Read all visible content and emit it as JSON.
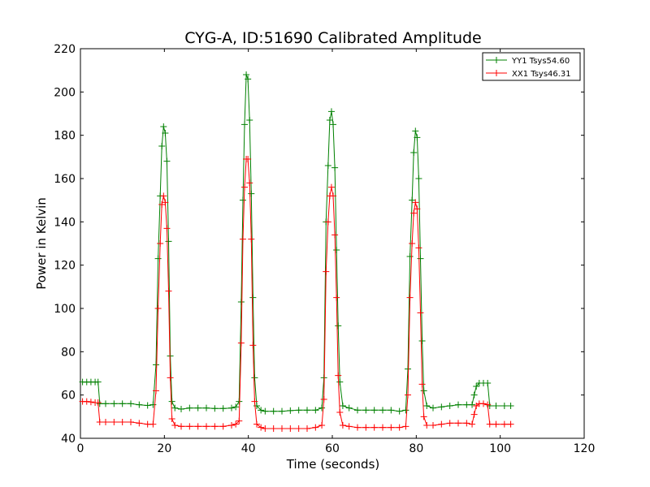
{
  "chart_data": {
    "type": "line",
    "title": "CYG-A, ID:51690 Calibrated Amplitude",
    "xlabel": "Time (seconds)",
    "ylabel": "Power in Kelvin",
    "xlim": [
      0,
      120
    ],
    "ylim": [
      40,
      220
    ],
    "xticks": [
      0,
      20,
      40,
      60,
      80,
      100,
      120
    ],
    "yticks": [
      40,
      60,
      80,
      100,
      120,
      140,
      160,
      180,
      200,
      220
    ],
    "xtick_labels": [
      "0",
      "20",
      "40",
      "60",
      "80",
      "100",
      "120"
    ],
    "ytick_labels": [
      "40",
      "60",
      "80",
      "100",
      "120",
      "140",
      "160",
      "180",
      "200",
      "220"
    ],
    "grid": false,
    "legend_position": "top-right",
    "marker": "+",
    "series": [
      {
        "name": "YY1 Tsys54.60",
        "color": "#008000",
        "points": [
          [
            0.5,
            66
          ],
          [
            1.5,
            66
          ],
          [
            2.5,
            66
          ],
          [
            3.5,
            66
          ],
          [
            4.2,
            66
          ],
          [
            4.6,
            56
          ],
          [
            6,
            56
          ],
          [
            8,
            56
          ],
          [
            10,
            56
          ],
          [
            12,
            56
          ],
          [
            14,
            55.5
          ],
          [
            16,
            55.2
          ],
          [
            17.3,
            55.5
          ],
          [
            18,
            74
          ],
          [
            18.5,
            123
          ],
          [
            19,
            152
          ],
          [
            19.4,
            175
          ],
          [
            19.8,
            184
          ],
          [
            20.2,
            181
          ],
          [
            20.6,
            168
          ],
          [
            21,
            131
          ],
          [
            21.4,
            78
          ],
          [
            21.8,
            57
          ],
          [
            22.5,
            54
          ],
          [
            24,
            53.5
          ],
          [
            26,
            54
          ],
          [
            28,
            54
          ],
          [
            30,
            54
          ],
          [
            32,
            53.8
          ],
          [
            34,
            53.8
          ],
          [
            36,
            54
          ],
          [
            37,
            54.5
          ],
          [
            37.8,
            57
          ],
          [
            38.3,
            103
          ],
          [
            38.7,
            150
          ],
          [
            39.1,
            185
          ],
          [
            39.5,
            208
          ],
          [
            39.9,
            206
          ],
          [
            40.3,
            187
          ],
          [
            40.7,
            153
          ],
          [
            41.1,
            105
          ],
          [
            41.5,
            68
          ],
          [
            42,
            55
          ],
          [
            43,
            53
          ],
          [
            44,
            52.5
          ],
          [
            46,
            52.5
          ],
          [
            48,
            52.5
          ],
          [
            50,
            52.8
          ],
          [
            52,
            53
          ],
          [
            54,
            53
          ],
          [
            56,
            53
          ],
          [
            57.5,
            54
          ],
          [
            58,
            68
          ],
          [
            58.5,
            140
          ],
          [
            59,
            166
          ],
          [
            59.4,
            187
          ],
          [
            59.8,
            191
          ],
          [
            60.2,
            185
          ],
          [
            60.6,
            165
          ],
          [
            61,
            127
          ],
          [
            61.4,
            92
          ],
          [
            61.8,
            66
          ],
          [
            62.5,
            55
          ],
          [
            64,
            54
          ],
          [
            66,
            53
          ],
          [
            68,
            53
          ],
          [
            70,
            53
          ],
          [
            72,
            53
          ],
          [
            74,
            53
          ],
          [
            76,
            52.5
          ],
          [
            77.5,
            53
          ],
          [
            78,
            72
          ],
          [
            78.5,
            124
          ],
          [
            79,
            150
          ],
          [
            79.4,
            172
          ],
          [
            79.8,
            182
          ],
          [
            80.2,
            179
          ],
          [
            80.6,
            160
          ],
          [
            81,
            123
          ],
          [
            81.4,
            85
          ],
          [
            81.8,
            62
          ],
          [
            82.5,
            55
          ],
          [
            84,
            54
          ],
          [
            86,
            54.5
          ],
          [
            88,
            55
          ],
          [
            90,
            55.5
          ],
          [
            92,
            55.5
          ],
          [
            93.3,
            55.5
          ],
          [
            93.8,
            60
          ],
          [
            94.3,
            64
          ],
          [
            95,
            65.5
          ],
          [
            96,
            65.5
          ],
          [
            97,
            65.5
          ],
          [
            97.5,
            55
          ],
          [
            99,
            55
          ],
          [
            101,
            55
          ],
          [
            102.5,
            55
          ]
        ]
      },
      {
        "name": "XX1 Tsys46.31",
        "color": "#ff0000",
        "points": [
          [
            0.5,
            57
          ],
          [
            1.5,
            57
          ],
          [
            2.5,
            56.8
          ],
          [
            3.5,
            56.5
          ],
          [
            4.2,
            56.5
          ],
          [
            4.6,
            47.5
          ],
          [
            6,
            47.5
          ],
          [
            8,
            47.5
          ],
          [
            10,
            47.5
          ],
          [
            12,
            47.5
          ],
          [
            14,
            47
          ],
          [
            16,
            46.5
          ],
          [
            17.3,
            46.5
          ],
          [
            18,
            62
          ],
          [
            18.5,
            100
          ],
          [
            19,
            130
          ],
          [
            19.4,
            148
          ],
          [
            19.8,
            152
          ],
          [
            20.2,
            149
          ],
          [
            20.6,
            137
          ],
          [
            21,
            108
          ],
          [
            21.4,
            68
          ],
          [
            21.8,
            49
          ],
          [
            22.5,
            46
          ],
          [
            24,
            45.5
          ],
          [
            26,
            45.5
          ],
          [
            28,
            45.5
          ],
          [
            30,
            45.5
          ],
          [
            32,
            45.5
          ],
          [
            34,
            45.5
          ],
          [
            36,
            46
          ],
          [
            37,
            46.5
          ],
          [
            37.8,
            48
          ],
          [
            38.3,
            84
          ],
          [
            38.7,
            132
          ],
          [
            39.1,
            156
          ],
          [
            39.5,
            169
          ],
          [
            39.9,
            169
          ],
          [
            40.3,
            158
          ],
          [
            40.7,
            132
          ],
          [
            41.1,
            83
          ],
          [
            41.5,
            57
          ],
          [
            42,
            46.5
          ],
          [
            43,
            45
          ],
          [
            44,
            44.5
          ],
          [
            46,
            44.5
          ],
          [
            48,
            44.5
          ],
          [
            50,
            44.5
          ],
          [
            52,
            44.5
          ],
          [
            54,
            44.5
          ],
          [
            56,
            45
          ],
          [
            57.5,
            46
          ],
          [
            58,
            58
          ],
          [
            58.5,
            117
          ],
          [
            59,
            140
          ],
          [
            59.4,
            152
          ],
          [
            59.8,
            156
          ],
          [
            60.2,
            152
          ],
          [
            60.6,
            134
          ],
          [
            61,
            105
          ],
          [
            61.4,
            69
          ],
          [
            61.8,
            52
          ],
          [
            62.5,
            46
          ],
          [
            64,
            45.5
          ],
          [
            66,
            45
          ],
          [
            68,
            45
          ],
          [
            70,
            45
          ],
          [
            72,
            45
          ],
          [
            74,
            45
          ],
          [
            76,
            45
          ],
          [
            77.5,
            45.5
          ],
          [
            78,
            60
          ],
          [
            78.5,
            105
          ],
          [
            79,
            130
          ],
          [
            79.4,
            144
          ],
          [
            79.8,
            149
          ],
          [
            80.2,
            146
          ],
          [
            80.6,
            128
          ],
          [
            81,
            98
          ],
          [
            81.4,
            65
          ],
          [
            81.8,
            50
          ],
          [
            82.5,
            46
          ],
          [
            84,
            46
          ],
          [
            86,
            46.5
          ],
          [
            88,
            47
          ],
          [
            90,
            47
          ],
          [
            92,
            47
          ],
          [
            93.3,
            46.5
          ],
          [
            93.8,
            51
          ],
          [
            94.3,
            55
          ],
          [
            95,
            56
          ],
          [
            96,
            56
          ],
          [
            97,
            55.5
          ],
          [
            97.5,
            46.5
          ],
          [
            99,
            46.5
          ],
          [
            101,
            46.5
          ],
          [
            102.5,
            46.5
          ]
        ]
      }
    ]
  }
}
